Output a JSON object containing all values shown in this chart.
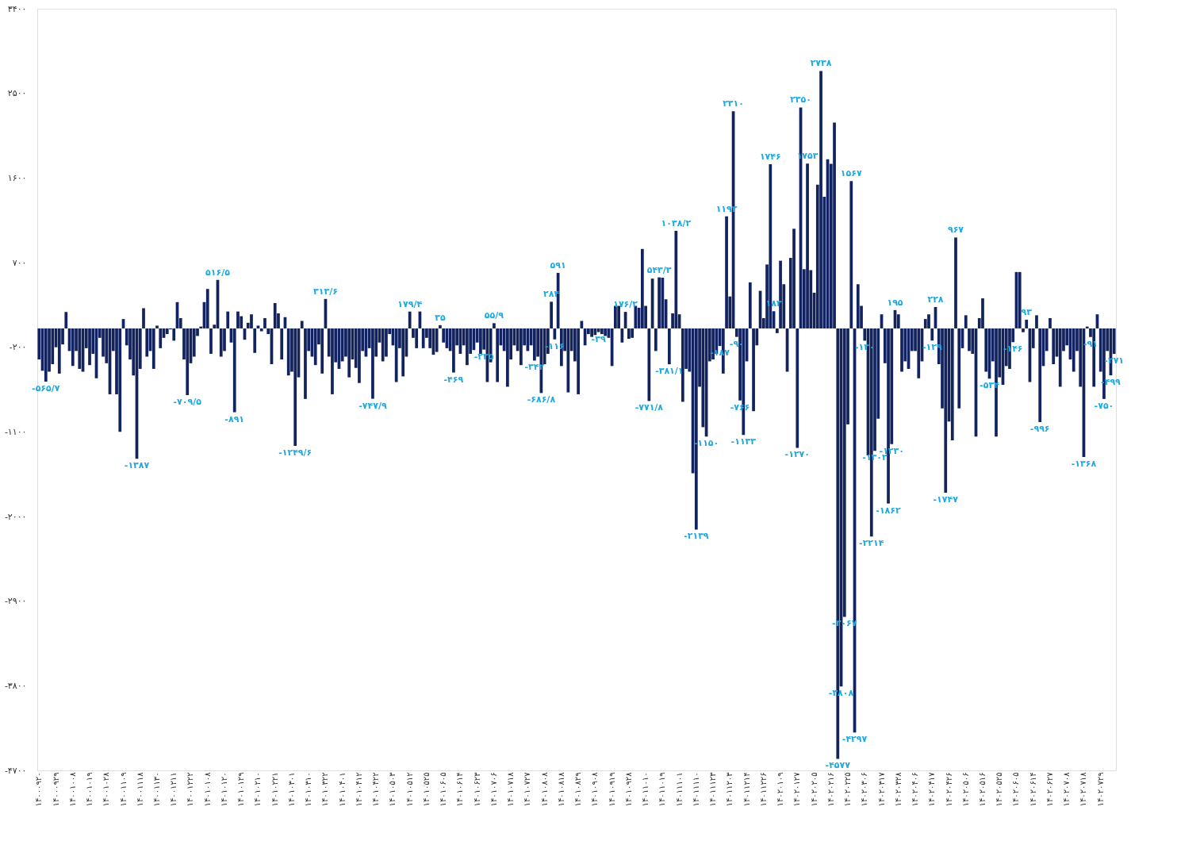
{
  "chart_data": {
    "type": "bar",
    "color": "#12235f",
    "categories": [
      "۱۴۰۰۰۹۲۰",
      null,
      null,
      null,
      null,
      "۱۴۰۰۰۹۲۹",
      null,
      null,
      null,
      null,
      "۱۴۰۰۱۰۰۸",
      null,
      null,
      null,
      null,
      "۱۴۰۰۱۰۱۹",
      null,
      null,
      null,
      null,
      "۱۴۰۰۱۰۲۸",
      null,
      null,
      null,
      null,
      "۱۴۰۰۱۱۰۹",
      null,
      null,
      null,
      null,
      "۱۴۰۰۱۱۱۸",
      null,
      null,
      null,
      null,
      "۱۴۰۰۱۱۳۰",
      null,
      null,
      null,
      null,
      "۱۴۰۰۱۲۱۱",
      null,
      null,
      null,
      null,
      "۱۴۰۰۱۲۲۲",
      null,
      null,
      null,
      null,
      "۱۴۰۱۰۱۰۸",
      null,
      null,
      null,
      null,
      "۱۴۰۱۰۱۲۰",
      null,
      null,
      null,
      null,
      "۱۴۰۱۰۱۲۹",
      null,
      null,
      null,
      null,
      "۱۴۰۱۰۲۱۰",
      null,
      null,
      null,
      null,
      "۱۴۰۱۰۲۲۱",
      null,
      null,
      null,
      null,
      "۱۴۰۱۰۳۰۱",
      null,
      null,
      null,
      null,
      "۱۴۰۱۰۳۱۰",
      null,
      null,
      null,
      null,
      "۱۴۰۱۰۳۲۲",
      null,
      null,
      null,
      null,
      "۱۴۰۱۰۴۰۱",
      null,
      null,
      null,
      null,
      "۱۴۰۱۰۴۱۲",
      null,
      null,
      null,
      null,
      "۱۴۰۱۰۴۲۲",
      null,
      null,
      null,
      null,
      "۱۴۰۱۰۵۰۳",
      null,
      null,
      null,
      null,
      "۱۴۰۱۰۵۱۲",
      null,
      null,
      null,
      null,
      "۱۴۰۱۰۵۲۵",
      null,
      null,
      null,
      null,
      "۱۴۰۱۰۶۰۵",
      null,
      null,
      null,
      null,
      "۱۴۰۱۰۶۱۴",
      null,
      null,
      null,
      null,
      "۱۴۰۱۰۶۲۳",
      null,
      null,
      null,
      null,
      "۱۴۰۱۰۷۰۶",
      null,
      null,
      null,
      null,
      "۱۴۰۱۰۷۱۸",
      null,
      null,
      null,
      null,
      "۱۴۰۱۰۷۲۷",
      null,
      null,
      null,
      null,
      "۱۴۰۱۰۸۰۸",
      null,
      null,
      null,
      null,
      "۱۴۰۱۰۸۱۸",
      null,
      null,
      null,
      null,
      "۱۴۰۱۰۸۲۹",
      null,
      null,
      null,
      null,
      "۱۴۰۱۰۹۰۸",
      null,
      null,
      null,
      null,
      "۱۴۰۱۰۹۱۹",
      null,
      null,
      null,
      null,
      "۱۴۰۱۰۹۲۸",
      null,
      null,
      null,
      null,
      "۱۴۰۱۱۰۱۰",
      null,
      null,
      null,
      null,
      "۱۴۰۱۱۰۱۹",
      null,
      null,
      null,
      null,
      "۱۴۰۱۱۱۰۱",
      null,
      null,
      null,
      null,
      "۱۴۰۱۱۱۱۰",
      null,
      null,
      null,
      null,
      "۱۴۰۱۱۱۲۳",
      null,
      null,
      null,
      null,
      "۱۴۰۱۱۲۰۳",
      null,
      null,
      null,
      null,
      "۱۴۰۱۱۲۱۴",
      null,
      null,
      null,
      null,
      "۱۴۰۱۱۲۲۶",
      null,
      null,
      null,
      null,
      "۱۴۰۲۰۱۰۹",
      null,
      null,
      null,
      null,
      "۱۴۰۲۰۱۲۷",
      null,
      null,
      null,
      null,
      "۱۴۰۲۰۲۰۵",
      null,
      null,
      null,
      null,
      "۱۴۰۲۰۲۱۶",
      null,
      null,
      null,
      null,
      "۱۴۰۲۰۲۲۵",
      null,
      null,
      null,
      null,
      "۱۴۰۲۰۳۰۶",
      null,
      null,
      null,
      null,
      "۱۴۰۲۰۳۱۷",
      null,
      null,
      null,
      null,
      "۱۴۰۲۰۳۲۸",
      null,
      null,
      null,
      null,
      "۱۴۰۲۰۴۰۶",
      null,
      null,
      null,
      null,
      "۱۴۰۲۰۴۱۷",
      null,
      null,
      null,
      null,
      "۱۴۰۲۰۴۲۶",
      null,
      null,
      null,
      null,
      "۱۴۰۲۰۵۰۶",
      null,
      null,
      null,
      null,
      "۱۴۰۲۰۵۱۶",
      null,
      null,
      null,
      null,
      "۱۴۰۲۰۵۲۵",
      null,
      null,
      null,
      null,
      "۱۴۰۲۰۶۰۵",
      null,
      null,
      null,
      null,
      "۱۴۰۲۰۶۱۴",
      null,
      null,
      null,
      null,
      "۱۴۰۲۰۶۲۷",
      null,
      null,
      null,
      null,
      "۱۴۰۲۰۷۰۸",
      null,
      null,
      null,
      null,
      "۱۴۰۲۰۷۱۸",
      null,
      null,
      null,
      null,
      "۱۴۰۲۰۷۲۹",
      null,
      null,
      null,
      null
    ],
    "values": [
      -330,
      -450,
      -565.7,
      -460,
      -380,
      -200,
      -480,
      -170,
      175,
      -240,
      -400,
      -240,
      -430,
      -460,
      -210,
      -390,
      -270,
      -530,
      -100,
      -300,
      -370,
      -700,
      -240,
      -700,
      -1100,
      100,
      -180,
      -330,
      -500,
      -1387,
      -430,
      215,
      -300,
      -240,
      -430,
      30,
      -210,
      -100,
      -60,
      -10,
      -130,
      280,
      110,
      -330,
      -709.5,
      -370,
      -300,
      -80,
      20,
      280,
      420,
      -270,
      40,
      516.5,
      -300,
      -240,
      180,
      -150,
      -891,
      180,
      130,
      -120,
      60,
      150,
      -260,
      30,
      -30,
      110,
      -60,
      -380,
      270,
      160,
      -330,
      120,
      -500,
      -460,
      -1249.6,
      -520,
      80,
      -750,
      -240,
      -300,
      -390,
      -170,
      -480,
      313.6,
      -300,
      -700,
      -360,
      -430,
      -350,
      -300,
      -520,
      -330,
      -420,
      -580,
      -240,
      -300,
      -210,
      -747.9,
      -300,
      -150,
      -350,
      -300,
      -60,
      -180,
      -570,
      -210,
      -510,
      -300,
      179.4,
      -100,
      -210,
      180,
      -210,
      -100,
      -210,
      -280,
      -250,
      35,
      -150,
      -210,
      -240,
      -469,
      -180,
      -270,
      -180,
      -390,
      -270,
      -230,
      -150,
      -270,
      -225,
      -570,
      -360,
      55.9,
      -570,
      -180,
      -240,
      -620,
      -330,
      -180,
      -240,
      -390,
      -180,
      -240,
      -180,
      -342,
      -300,
      -686.8,
      -380,
      -270,
      284,
      -116,
      591,
      -400,
      -240,
      -680,
      -240,
      -350,
      -700,
      80,
      -180,
      -60,
      -90,
      -70,
      -39,
      -60,
      -80,
      -100,
      -400,
      240,
      240,
      -150,
      176.2,
      -110,
      -100,
      240,
      220,
      845,
      240,
      -771.8,
      530,
      -240,
      543.3,
      540,
      310,
      -381.1,
      160,
      1038.2,
      150,
      -780,
      -430,
      -460,
      -1540,
      -2139,
      -620,
      -1050,
      -1150,
      -350,
      -330,
      -270,
      -187,
      -480,
      1192,
      340,
      2310,
      -90,
      -766,
      -1133,
      -350,
      490,
      -880,
      -180,
      400,
      110,
      680,
      1746,
      183,
      -50,
      720,
      470,
      -460,
      750,
      1060,
      -1270,
      2350,
      630,
      1753,
      620,
      380,
      1530,
      2738,
      1400,
      1800,
      1750,
      2190,
      -4577,
      -3808,
      -3067,
      -1020,
      1567,
      -4297,
      470,
      240,
      -130,
      -1350,
      -2214,
      -1302,
      -960,
      150,
      -370,
      -1862,
      -1230,
      195,
      150,
      -460,
      -350,
      -430,
      -240,
      -240,
      -530,
      -350,
      100,
      150,
      -129,
      228,
      -380,
      -850,
      -1747,
      -990,
      -1190,
      967,
      -850,
      -210,
      140,
      -240,
      -270,
      -1150,
      110,
      320,
      -460,
      -534,
      -350,
      -1150,
      -520,
      -600,
      -400,
      -430,
      -146,
      600,
      600,
      -40,
      93,
      -570,
      -210,
      140,
      -996,
      -400,
      -240,
      110,
      -380,
      -300,
      -620,
      -240,
      -180,
      -330,
      -460,
      -240,
      -620,
      -1368,
      20,
      -91,
      -620,
      150,
      -460,
      -750,
      -240,
      -499,
      -271
    ],
    "value_labels": [
      null,
      null,
      "-۵۶۵/۷",
      null,
      null,
      null,
      null,
      null,
      null,
      null,
      null,
      null,
      null,
      null,
      null,
      null,
      null,
      null,
      null,
      null,
      null,
      null,
      null,
      null,
      null,
      null,
      null,
      null,
      null,
      "-۱۳۸۷",
      null,
      null,
      null,
      null,
      null,
      null,
      null,
      null,
      null,
      null,
      null,
      null,
      null,
      null,
      "-۷۰۹/۵",
      null,
      null,
      null,
      null,
      null,
      null,
      null,
      null,
      "۵۱۶/۵",
      null,
      null,
      null,
      null,
      "-۸۹۱",
      null,
      null,
      null,
      null,
      null,
      null,
      null,
      null,
      null,
      null,
      null,
      null,
      null,
      null,
      null,
      null,
      null,
      "-۱۲۴۹/۶",
      null,
      null,
      null,
      null,
      null,
      null,
      null,
      null,
      "۳۱۳/۶",
      null,
      null,
      null,
      null,
      null,
      null,
      null,
      null,
      null,
      null,
      null,
      null,
      null,
      "-۷۴۷/۹",
      null,
      null,
      null,
      null,
      null,
      null,
      null,
      null,
      null,
      null,
      "۱۷۹/۴",
      null,
      null,
      null,
      null,
      null,
      null,
      null,
      null,
      "۳۵",
      null,
      null,
      null,
      "-۴۶۹",
      null,
      null,
      null,
      null,
      null,
      null,
      null,
      null,
      "-۲۲۵",
      null,
      null,
      "۵۵/۹",
      null,
      null,
      null,
      null,
      null,
      null,
      null,
      null,
      null,
      null,
      null,
      "-۳۴۲",
      null,
      "-۶۸۶/۸",
      null,
      null,
      "۲۸۴",
      "-۱۱۶",
      "۵۹۱",
      null,
      null,
      null,
      null,
      null,
      null,
      null,
      null,
      null,
      null,
      null,
      "-۳۹",
      null,
      null,
      null,
      null,
      null,
      null,
      null,
      "۱۷۶/۲",
      null,
      null,
      null,
      null,
      null,
      null,
      "-۷۷۱/۸",
      null,
      null,
      "۵۴۳/۳",
      null,
      null,
      "-۳۸۱/۱",
      null,
      "۱۰۳۸/۲",
      null,
      null,
      null,
      null,
      null,
      "-۲۱۳۹",
      null,
      null,
      "-۱۱۵۰",
      null,
      null,
      null,
      "-۱۸۷",
      null,
      "۱۱۹۲",
      null,
      "۲۳۱۰",
      "-۹۰",
      "-۷۶۶",
      "-۱۱۳۳",
      null,
      null,
      null,
      null,
      null,
      null,
      null,
      "۱۷۴۶",
      "۱۸۳",
      null,
      null,
      null,
      null,
      null,
      null,
      "-۱۲۷۰",
      "۲۳۵۰",
      null,
      "۱۷۵۳",
      null,
      null,
      null,
      "۲۷۳۸",
      null,
      null,
      null,
      null,
      "-۴۵۷۷",
      "-۳۸۰۸",
      "-۳۰۶۷",
      null,
      "۱۵۶۷",
      "-۴۲۹۷",
      null,
      null,
      "-۱۳۰",
      null,
      "-۲۲۱۴",
      "-۱۳۰۲",
      null,
      null,
      null,
      "-۱۸۶۲",
      "-۱۲۳۰",
      "۱۹۵",
      null,
      null,
      null,
      null,
      null,
      null,
      null,
      null,
      null,
      null,
      "-۱۲۹",
      "۲۲۸",
      null,
      null,
      "-۱۷۴۷",
      null,
      null,
      "۹۶۷",
      null,
      null,
      null,
      null,
      null,
      null,
      null,
      null,
      null,
      "-۵۳۴",
      null,
      null,
      null,
      null,
      null,
      null,
      "-۱۴۶",
      null,
      null,
      null,
      "۹۳",
      null,
      null,
      null,
      "-۹۹۶",
      null,
      null,
      null,
      null,
      null,
      null,
      null,
      null,
      null,
      null,
      null,
      null,
      "-۱۳۶۸",
      null,
      "-۹۱",
      null,
      null,
      null,
      "-۷۵۰",
      null,
      "-۴۹۹",
      "-۲۷۱"
    ],
    "ylim": [
      -4700,
      3400
    ],
    "yticks": [
      {
        "value": 3400,
        "label": "۳۴۰۰"
      },
      {
        "value": 2500,
        "label": "۲۵۰۰"
      },
      {
        "value": 1600,
        "label": "۱۶۰۰"
      },
      {
        "value": 700,
        "label": "۷۰۰"
      },
      {
        "value": -200,
        "label": "-۲۰۰"
      },
      {
        "value": -1100,
        "label": "-۱۱۰۰"
      },
      {
        "value": -2000,
        "label": "-۲۰۰۰"
      },
      {
        "value": -2900,
        "label": "-۲۹۰۰"
      },
      {
        "value": -3800,
        "label": "-۳۸۰۰"
      },
      {
        "value": -4700,
        "label": "-۴۷۰۰"
      }
    ]
  }
}
